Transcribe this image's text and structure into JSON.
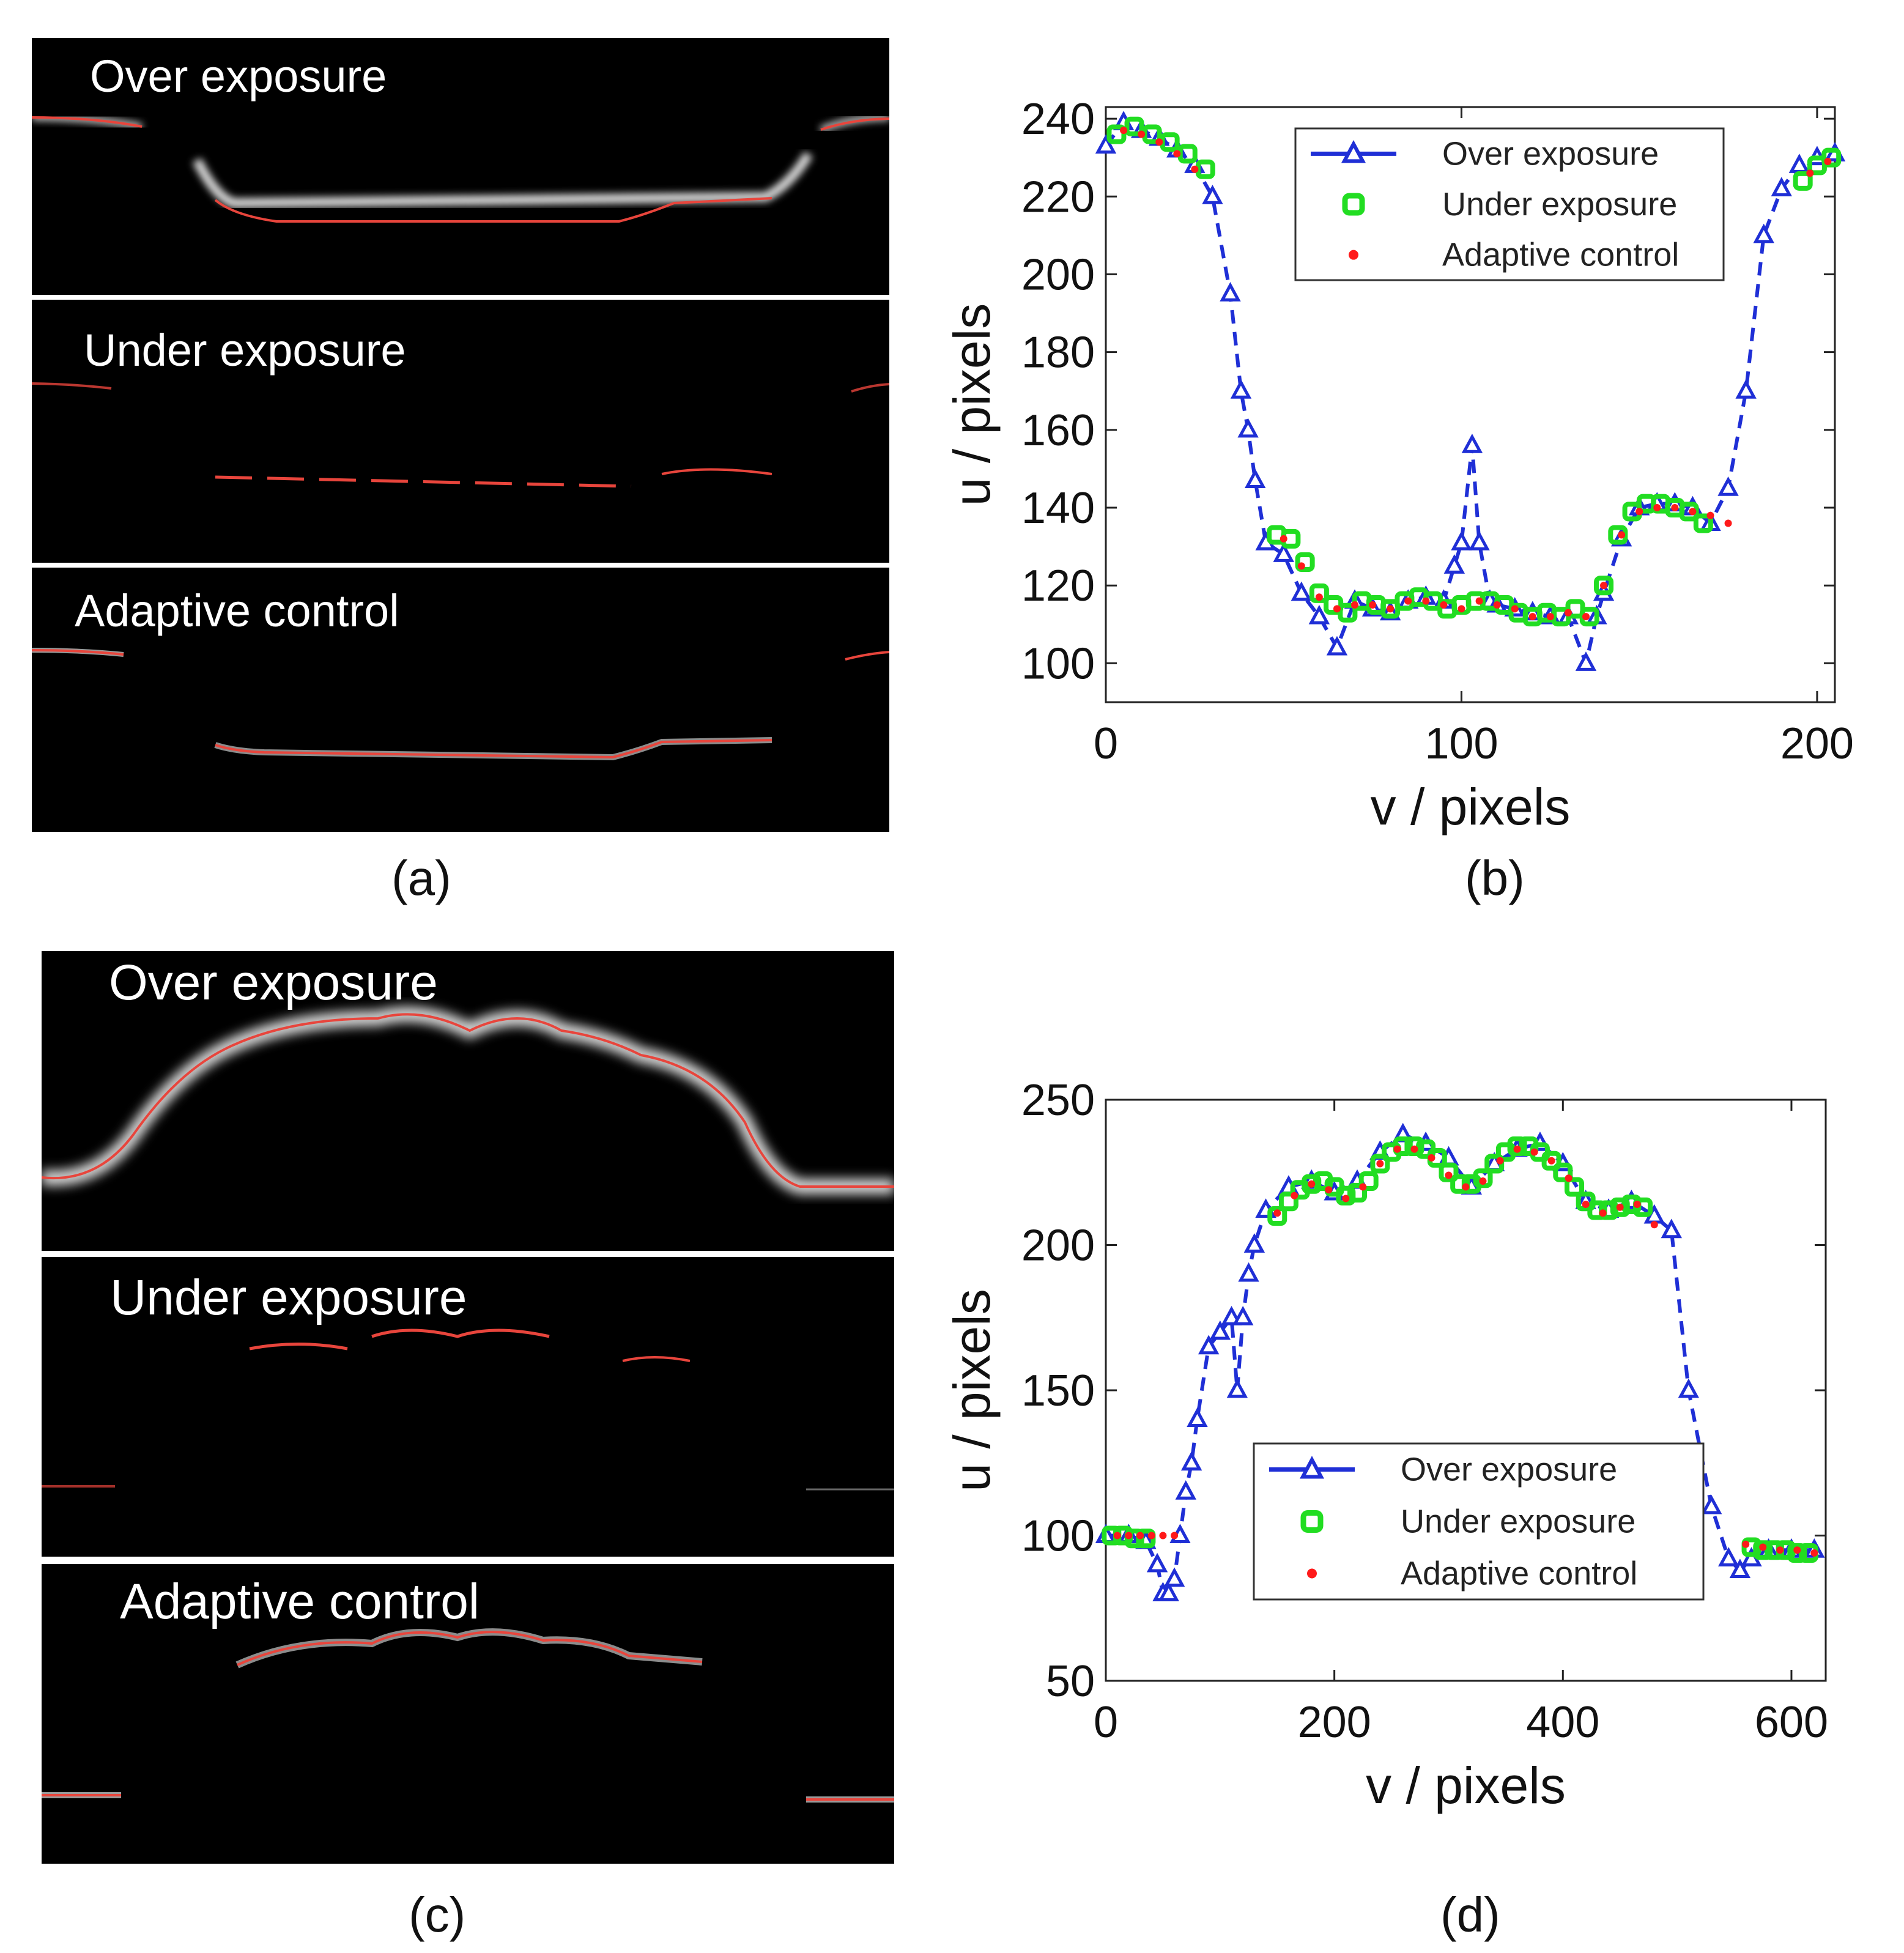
{
  "figure": {
    "captions": [
      "(a)",
      "(b)",
      "(c)",
      "(d)"
    ],
    "panel_a": {
      "titles": [
        "Over exposure",
        "Under exposure",
        "Adaptive control"
      ]
    },
    "panel_c": {
      "titles": [
        "Over exposure",
        "Under exposure",
        "Adaptive control"
      ]
    },
    "colors": {
      "background": "#000000",
      "profile_line": "#e8453c",
      "over_series": "#1f2fd6",
      "under_series": "#22dd22",
      "adaptive_series": "#ff1a1a"
    }
  },
  "chart_data": [
    {
      "id": "b",
      "type": "line",
      "title": "",
      "xlabel": "v / pixels",
      "ylabel": "u / pixels",
      "xlim": [
        0,
        205
      ],
      "ylim": [
        90,
        243
      ],
      "xticks": [
        0,
        100,
        200
      ],
      "yticks": [
        100,
        120,
        140,
        160,
        180,
        200,
        220,
        240
      ],
      "legend_position": "top-center",
      "series": [
        {
          "name": "Over exposure",
          "marker": "triangle",
          "line": "dashed",
          "x": [
            0,
            5,
            10,
            15,
            20,
            25,
            30,
            35,
            38,
            40,
            42,
            45,
            50,
            55,
            60,
            65,
            70,
            75,
            80,
            85,
            90,
            95,
            98,
            100,
            103,
            105,
            108,
            110,
            115,
            120,
            125,
            130,
            135,
            138,
            140,
            145,
            150,
            155,
            160,
            165,
            170,
            175,
            180,
            185,
            190,
            195,
            200,
            205
          ],
          "y": [
            233,
            239,
            237,
            235,
            232,
            228,
            220,
            195,
            170,
            160,
            147,
            131,
            128,
            118,
            112,
            104,
            116,
            114,
            113,
            116,
            117,
            116,
            125,
            131,
            156,
            131,
            116,
            115,
            114,
            113,
            112,
            112,
            100,
            112,
            118,
            132,
            140,
            141,
            141,
            140,
            136,
            145,
            170,
            210,
            222,
            228,
            230,
            231
          ]
        },
        {
          "name": "Under exposure",
          "marker": "square",
          "line": "none",
          "x": [
            3,
            8,
            13,
            18,
            23,
            28,
            48,
            52,
            56,
            60,
            64,
            68,
            72,
            76,
            80,
            84,
            88,
            92,
            96,
            100,
            104,
            108,
            112,
            116,
            120,
            124,
            128,
            132,
            136,
            140,
            144,
            148,
            152,
            156,
            160,
            164,
            168,
            196,
            200,
            204
          ],
          "y": [
            236,
            238,
            236,
            234,
            231,
            227,
            133,
            132,
            126,
            118,
            115,
            113,
            116,
            115,
            114,
            116,
            117,
            116,
            114,
            115,
            116,
            116,
            115,
            113,
            112,
            113,
            112,
            114,
            112,
            120,
            133,
            139,
            141,
            141,
            140,
            139,
            136,
            224,
            228,
            230
          ]
        },
        {
          "name": "Adaptive control",
          "marker": "dot",
          "line": "none",
          "x": [
            5,
            10,
            15,
            20,
            25,
            50,
            55,
            60,
            65,
            70,
            75,
            80,
            85,
            90,
            95,
            100,
            105,
            110,
            115,
            120,
            125,
            130,
            135,
            140,
            145,
            150,
            155,
            160,
            165,
            170,
            175,
            198,
            203
          ],
          "y": [
            237,
            236,
            234,
            231,
            227,
            132,
            125,
            117,
            114,
            115,
            115,
            114,
            116,
            116,
            115,
            114,
            116,
            115,
            114,
            112,
            112,
            113,
            112,
            120,
            133,
            139,
            140,
            140,
            139,
            138,
            136,
            226,
            229
          ]
        }
      ]
    },
    {
      "id": "d",
      "type": "line",
      "title": "",
      "xlabel": "v / pixels",
      "ylabel": "u / pixels",
      "xlim": [
        0,
        630
      ],
      "ylim": [
        50,
        250
      ],
      "xticks": [
        0,
        200,
        400,
        600
      ],
      "yticks": [
        50,
        100,
        150,
        200,
        250
      ],
      "legend_position": "bottom-center",
      "series": [
        {
          "name": "Over exposure",
          "marker": "triangle",
          "line": "dashed",
          "x": [
            0,
            20,
            35,
            45,
            50,
            55,
            60,
            65,
            70,
            75,
            80,
            90,
            100,
            110,
            115,
            120,
            125,
            130,
            140,
            160,
            180,
            200,
            220,
            240,
            260,
            280,
            300,
            320,
            340,
            360,
            380,
            400,
            420,
            440,
            460,
            480,
            495,
            510,
            530,
            545,
            555,
            565,
            580,
            600,
            620
          ],
          "y": [
            100,
            100,
            98,
            90,
            80,
            80,
            85,
            100,
            115,
            125,
            140,
            165,
            170,
            175,
            150,
            175,
            190,
            200,
            212,
            220,
            222,
            218,
            222,
            232,
            238,
            235,
            230,
            220,
            228,
            233,
            235,
            228,
            215,
            212,
            215,
            210,
            205,
            150,
            110,
            92,
            88,
            92,
            95,
            95,
            95
          ]
        },
        {
          "name": "Under exposure",
          "marker": "square",
          "line": "none",
          "x": [
            5,
            15,
            25,
            35,
            150,
            160,
            170,
            180,
            190,
            200,
            210,
            220,
            230,
            240,
            250,
            260,
            270,
            280,
            290,
            300,
            310,
            320,
            330,
            340,
            350,
            360,
            370,
            380,
            390,
            400,
            410,
            420,
            430,
            440,
            450,
            460,
            470,
            565,
            575,
            585,
            595,
            605,
            615
          ],
          "y": [
            100,
            100,
            99,
            99,
            210,
            215,
            219,
            221,
            222,
            220,
            217,
            218,
            222,
            228,
            232,
            234,
            234,
            233,
            230,
            225,
            221,
            221,
            223,
            228,
            232,
            234,
            234,
            232,
            229,
            225,
            220,
            215,
            212,
            212,
            213,
            214,
            213,
            96,
            95,
            95,
            95,
            94,
            94
          ]
        },
        {
          "name": "Adaptive control",
          "marker": "dot",
          "line": "none",
          "x": [
            10,
            20,
            30,
            40,
            50,
            60,
            150,
            165,
            180,
            195,
            210,
            225,
            240,
            255,
            270,
            285,
            300,
            315,
            330,
            345,
            360,
            375,
            390,
            405,
            420,
            435,
            450,
            465,
            480,
            560,
            575,
            590,
            605,
            620
          ],
          "y": [
            100,
            100,
            100,
            100,
            100,
            100,
            211,
            217,
            221,
            219,
            216,
            220,
            228,
            233,
            233,
            230,
            224,
            220,
            222,
            229,
            233,
            232,
            229,
            223,
            214,
            211,
            213,
            214,
            207,
            97,
            96,
            95,
            95,
            94
          ]
        }
      ]
    }
  ]
}
